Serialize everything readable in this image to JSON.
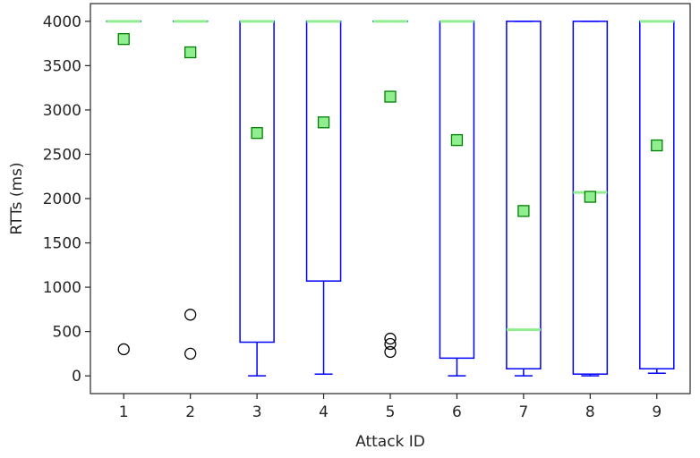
{
  "chart_data": {
    "type": "boxplot",
    "title": "",
    "xlabel": "Attack ID",
    "ylabel": "RTTs (ms)",
    "ylim": [
      -200,
      4200
    ],
    "yticks": [
      "0",
      "500",
      "1000",
      "1500",
      "2000",
      "2500",
      "3000",
      "3500",
      "4000"
    ],
    "grid": false,
    "colors": {
      "box": "#0000ff",
      "median": "#90ee90",
      "mean_fill": "#90ee90",
      "mean_edge": "#008000",
      "outlier": "#000000"
    },
    "categories": [
      "1",
      "2",
      "3",
      "4",
      "5",
      "6",
      "7",
      "8",
      "9"
    ],
    "boxes": [
      {
        "id": "1",
        "q1": 4000,
        "median": 4000,
        "q3": 4000,
        "whisker_low": 4000,
        "whisker_high": 4000,
        "mean": 3800,
        "outliers": [
          300
        ]
      },
      {
        "id": "2",
        "q1": 4000,
        "median": 4000,
        "q3": 4000,
        "whisker_low": 4000,
        "whisker_high": 4000,
        "mean": 3650,
        "outliers": [
          690,
          250
        ]
      },
      {
        "id": "3",
        "q1": 380,
        "median": 4000,
        "q3": 4000,
        "whisker_low": 0,
        "whisker_high": 4000,
        "mean": 2740,
        "outliers": []
      },
      {
        "id": "4",
        "q1": 1070,
        "median": 4000,
        "q3": 4000,
        "whisker_low": 20,
        "whisker_high": 4000,
        "mean": 2860,
        "outliers": []
      },
      {
        "id": "5",
        "q1": 4000,
        "median": 4000,
        "q3": 4000,
        "whisker_low": 4000,
        "whisker_high": 4000,
        "mean": 3150,
        "outliers": [
          420,
          360,
          270
        ]
      },
      {
        "id": "6",
        "q1": 200,
        "median": 4000,
        "q3": 4000,
        "whisker_low": 0,
        "whisker_high": 4000,
        "mean": 2660,
        "outliers": []
      },
      {
        "id": "7",
        "q1": 80,
        "median": 520,
        "q3": 4000,
        "whisker_low": 0,
        "whisker_high": 4000,
        "mean": 1860,
        "outliers": []
      },
      {
        "id": "8",
        "q1": 20,
        "median": 2070,
        "q3": 4000,
        "whisker_low": 0,
        "whisker_high": 4000,
        "mean": 2020,
        "outliers": []
      },
      {
        "id": "9",
        "q1": 80,
        "median": 4000,
        "q3": 4000,
        "whisker_low": 30,
        "whisker_high": 4000,
        "mean": 2600,
        "outliers": []
      }
    ]
  }
}
